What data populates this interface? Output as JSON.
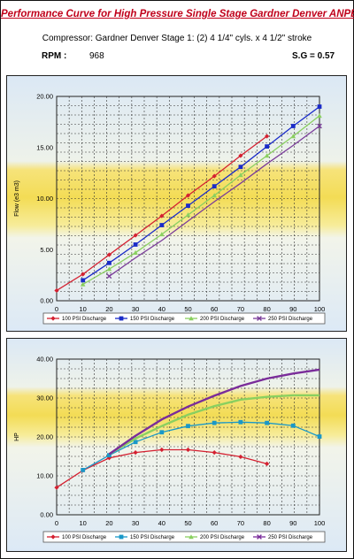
{
  "header": {
    "title": "Performance Curve for High Pressure Single Stage Gardner Denver ANPEAA",
    "subtitle": "Compressor: Gardner Denver Stage 1: (2) 4 1/4\" cyls. x 4 1/2\" stroke",
    "rpm_label": "RPM :",
    "rpm_value": "968",
    "sg_label": "S.G = 0.57"
  },
  "chart_data": [
    {
      "type": "line",
      "xlabel": "",
      "ylabel": "Flow (e3 m3)",
      "xlim": [
        0,
        100
      ],
      "ylim": [
        0,
        20
      ],
      "x_ticks": [
        "0",
        "10",
        "20",
        "30",
        "40",
        "50",
        "60",
        "70",
        "80",
        "90",
        "100"
      ],
      "y_ticks": [
        "0.00",
        "5.00",
        "10.00",
        "15.00",
        "20.00"
      ],
      "grid": true,
      "legend_position": "bottom",
      "series": [
        {
          "name": "100 PSI Discharge",
          "color": "#d42030",
          "marker": "diamond",
          "x": [
            0,
            10,
            20,
            30,
            40,
            50,
            60,
            70,
            80
          ],
          "y": [
            1.0,
            2.6,
            4.5,
            6.4,
            8.3,
            10.3,
            12.2,
            14.2,
            16.1
          ]
        },
        {
          "name": "150 PSI Discharge",
          "color": "#1a2bc8",
          "marker": "square",
          "x": [
            10,
            20,
            30,
            40,
            50,
            60,
            70,
            80,
            90,
            100
          ],
          "y": [
            2.0,
            3.7,
            5.5,
            7.4,
            9.3,
            11.2,
            13.1,
            15.1,
            17.1,
            19.0
          ],
          "markers_at": [
            10,
            20,
            30,
            40,
            50,
            60,
            70,
            80,
            90,
            100
          ]
        },
        {
          "name": "200 PSI Discharge",
          "color": "#8ad060",
          "marker": "triangle",
          "x": [
            10,
            20,
            30,
            40,
            50,
            60,
            70,
            80,
            90,
            100
          ],
          "y": [
            1.6,
            3.1,
            4.7,
            6.5,
            8.4,
            10.3,
            12.3,
            14.2,
            16.1,
            18.1
          ],
          "markers_at": [
            10,
            20,
            30,
            40,
            50,
            60,
            70,
            80,
            90,
            100
          ]
        },
        {
          "name": "250 PSI Discharge",
          "color": "#7a3c9a",
          "marker": "x",
          "x": [
            20,
            30,
            40,
            50,
            60,
            70,
            80,
            90,
            100
          ],
          "y": [
            2.4,
            4.2,
            5.9,
            7.8,
            9.7,
            11.5,
            13.4,
            15.2,
            17.1
          ],
          "markers_at": [
            20,
            100
          ]
        }
      ]
    },
    {
      "type": "line",
      "xlabel": "",
      "ylabel": "HP",
      "xlim": [
        0,
        100
      ],
      "ylim": [
        0,
        40
      ],
      "x_ticks": [
        "0",
        "10",
        "20",
        "30",
        "40",
        "50",
        "60",
        "70",
        "80",
        "90",
        "100"
      ],
      "y_ticks": [
        "0.00",
        "10.00",
        "20.00",
        "30.00",
        "40.00"
      ],
      "grid": true,
      "legend_position": "bottom",
      "series": [
        {
          "name": "100 PSI Discharge",
          "color": "#d42030",
          "marker": "diamond",
          "x": [
            0,
            10,
            20,
            30,
            40,
            50,
            60,
            70,
            80
          ],
          "y": [
            7.0,
            11.4,
            14.6,
            16.0,
            16.7,
            16.7,
            16.0,
            14.9,
            13.1
          ],
          "markers_at": [
            0,
            10,
            20,
            30,
            40,
            50,
            60,
            70,
            80
          ]
        },
        {
          "name": "150 PSI Discharge",
          "color": "#1a98c8",
          "marker": "square",
          "x": [
            10,
            20,
            30,
            40,
            50,
            60,
            70,
            80,
            90,
            100
          ],
          "y": [
            11.5,
            15.3,
            18.7,
            21.2,
            22.8,
            23.6,
            23.8,
            23.6,
            22.9,
            20.1
          ],
          "markers_at": [
            10,
            20,
            30,
            40,
            50,
            60,
            70,
            80,
            90,
            100
          ]
        },
        {
          "name": "200 PSI Discharge",
          "color": "#8ad060",
          "marker": "triangle",
          "x": [
            20,
            30,
            40,
            50,
            60,
            70,
            80,
            90,
            100
          ],
          "y": [
            15.6,
            19.6,
            22.8,
            25.7,
            27.9,
            29.6,
            30.3,
            30.7,
            30.7
          ],
          "markers_at": []
        },
        {
          "name": "250 PSI Discharge",
          "color": "#7a2c9a",
          "marker": "x",
          "x": [
            20,
            30,
            40,
            50,
            60,
            70,
            80,
            90,
            100
          ],
          "y": [
            15.6,
            20.3,
            24.5,
            27.8,
            30.6,
            33.1,
            35.0,
            36.3,
            37.3
          ],
          "markers_at": []
        }
      ]
    }
  ]
}
